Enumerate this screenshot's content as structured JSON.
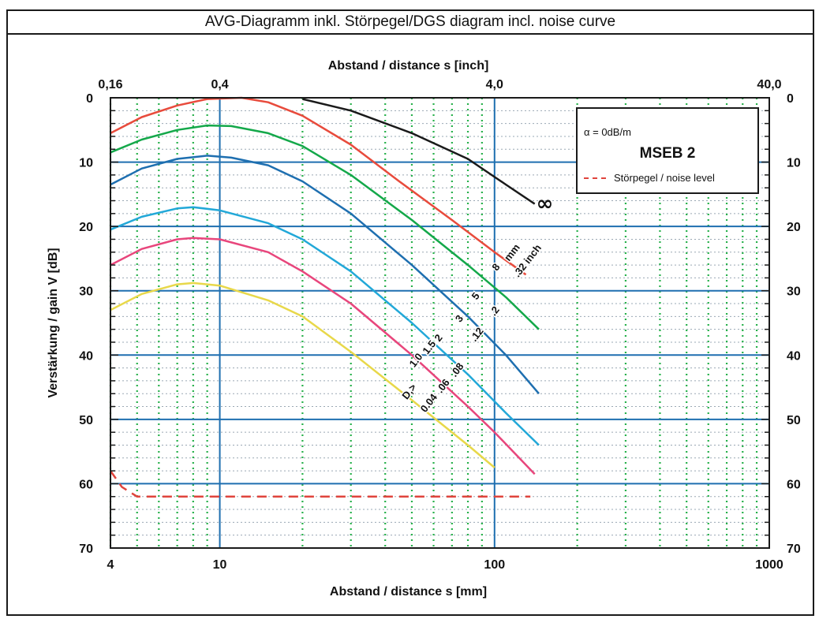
{
  "title": "AVG-Diagramm inkl. Störpegel/DGS diagram incl. noise curve",
  "chart_data": {
    "type": "line",
    "x_scale": "log",
    "xlabel": "Abstand / distance s [mm]",
    "x2label": "Abstand / distance s [inch]",
    "ylabel": "Verstärkung / gain V [dB]",
    "xlim": [
      4,
      1000
    ],
    "ylim": [
      0,
      70
    ],
    "y_inverted": true,
    "grid": true,
    "x_ticks": [
      "4",
      "10",
      "100",
      "1000"
    ],
    "x2_ticks": [
      "0,16",
      "0,4",
      "4,0",
      "40,0"
    ],
    "y_ticks": [
      "0",
      "10",
      "20",
      "30",
      "40",
      "50",
      "60",
      "70"
    ],
    "legend": {
      "alpha_label": "α = 0dB/m",
      "probe_name": "MSEB 2",
      "noise_label": "Störpegel / noise level",
      "noise_color": "#e0443c"
    },
    "series": [
      {
        "color": "#1a1a1a",
        "x": [
          20,
          30,
          50,
          80,
          110,
          140
        ],
        "y": [
          0.2,
          2.0,
          5.5,
          9.5,
          13.5,
          16.5
        ],
        "end_label": "∞"
      },
      {
        "color": "#e84b3c",
        "x": [
          4,
          5.2,
          7,
          9,
          12,
          15,
          20,
          30,
          45,
          70,
          100,
          130
        ],
        "y": [
          5.5,
          3.0,
          1.2,
          0.2,
          0.0,
          0.7,
          2.8,
          7.3,
          13,
          19,
          24,
          27.5
        ]
      },
      {
        "color": "#14a84a",
        "x": [
          4,
          5.2,
          7,
          9,
          11,
          15,
          20,
          30,
          50,
          80,
          110,
          145
        ],
        "y": [
          8.5,
          6.5,
          5.0,
          4.3,
          4.4,
          5.5,
          7.5,
          12,
          19,
          26,
          31,
          36
        ]
      },
      {
        "color": "#1e6fb0",
        "x": [
          4,
          5.2,
          7,
          9,
          11,
          15,
          20,
          30,
          50,
          80,
          110,
          145
        ],
        "y": [
          13.5,
          11.0,
          9.5,
          9.0,
          9.3,
          10.5,
          13,
          18,
          26,
          34,
          40,
          46
        ]
      },
      {
        "color": "#22a8d8",
        "x": [
          4,
          5.2,
          7,
          8,
          10,
          15,
          20,
          30,
          50,
          80,
          110,
          145
        ],
        "y": [
          20.5,
          18.5,
          17.2,
          17.0,
          17.5,
          19.5,
          22,
          27,
          35,
          43,
          49,
          54
        ]
      },
      {
        "color": "#e8467c",
        "x": [
          4,
          5.2,
          7,
          8,
          10,
          15,
          20,
          30,
          50,
          80,
          100,
          140
        ],
        "y": [
          26,
          23.5,
          22.0,
          21.8,
          22.0,
          24,
          27,
          32,
          40,
          48,
          52,
          58.5
        ]
      },
      {
        "color": "#e8d84a",
        "x": [
          4,
          5.2,
          7,
          8,
          10,
          15,
          20,
          30,
          50,
          80,
          100
        ],
        "y": [
          33,
          30.5,
          29,
          28.8,
          29.2,
          31.5,
          34,
          39.5,
          47,
          54,
          57.5
        ]
      }
    ],
    "noise_series": {
      "x": [
        4,
        4.4,
        5,
        7,
        10,
        20,
        50,
        100,
        135
      ],
      "y": [
        58,
        60.5,
        62,
        62,
        62,
        62,
        62,
        62,
        62
      ]
    },
    "diameter_labels": [
      {
        "text": "D,>",
        "x": 48,
        "y": 47,
        "angle": -52
      },
      {
        "text": "1.0",
        "x": 51,
        "y": 42,
        "angle": -52
      },
      {
        "text": "1.5",
        "x": 57,
        "y": 40,
        "angle": -52
      },
      {
        "text": "2",
        "x": 63,
        "y": 38,
        "angle": -52
      },
      {
        "text": "3",
        "x": 75,
        "y": 35,
        "angle": -52
      },
      {
        "text": "5",
        "x": 86,
        "y": 31.5,
        "angle": -52
      },
      {
        "text": "8",
        "x": 102,
        "y": 27,
        "angle": -52
      },
      {
        "text": "mm",
        "x": 113,
        "y": 25.5,
        "angle": -52
      },
      {
        "text": "0.04",
        "x": 56,
        "y": 49,
        "angle": -52
      },
      {
        "text": ".06",
        "x": 64,
        "y": 46,
        "angle": -52
      },
      {
        "text": ".08",
        "x": 72,
        "y": 43.5,
        "angle": -52
      },
      {
        "text": ".12",
        "x": 85,
        "y": 38,
        "angle": -52
      },
      {
        "text": ".2",
        "x": 100,
        "y": 34,
        "angle": -52
      },
      {
        "text": ".32 inch",
        "x": 122,
        "y": 28,
        "angle": -52
      }
    ]
  }
}
